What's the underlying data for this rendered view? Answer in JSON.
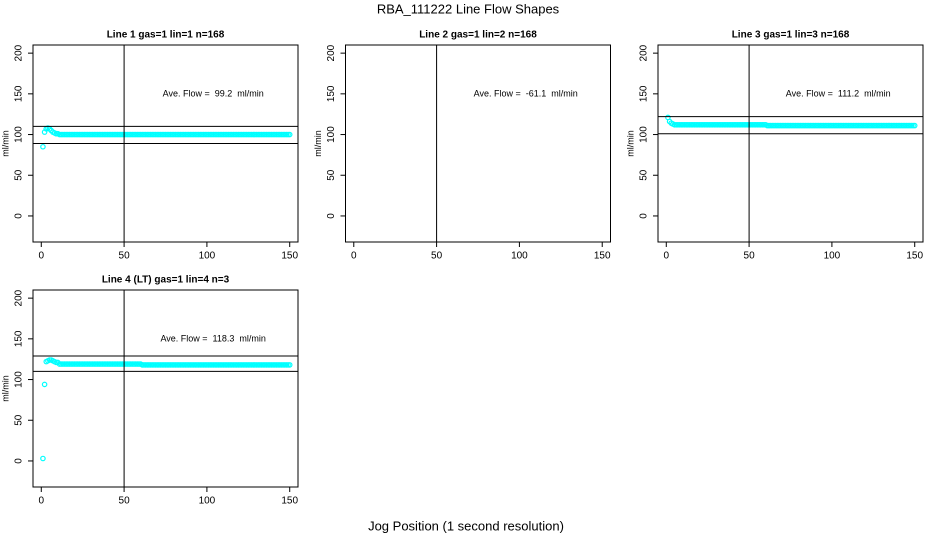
{
  "title": "RBA_111222  Line Flow Shapes",
  "xlabel": "Jog Position (1 second resolution)",
  "chart_data": [
    {
      "type": "scatter",
      "title": "Line 1 gas=1 lin=1 n=168",
      "ylabel": "ml/min",
      "color": "#00ffff",
      "annotation": "Ave. Flow =  99.2  ml/min",
      "xlim": [
        -5,
        155
      ],
      "ylim": [
        -32,
        210
      ],
      "xticks": [
        0,
        50,
        100,
        150
      ],
      "yticks": [
        0,
        50,
        100,
        150,
        200
      ],
      "hlines": [
        110,
        89
      ],
      "vlines": [
        50
      ],
      "x": [
        1,
        2,
        3,
        4,
        5,
        6,
        7,
        8,
        9,
        10,
        11,
        12,
        13,
        14,
        15,
        16,
        17,
        18,
        19,
        20,
        21,
        22,
        23,
        24,
        25,
        26,
        27,
        28,
        29,
        30,
        31,
        32,
        33,
        34,
        35,
        36,
        37,
        38,
        39,
        40,
        41,
        42,
        43,
        44,
        45,
        46,
        47,
        48,
        49,
        50,
        51,
        52,
        53,
        54,
        55,
        56,
        57,
        58,
        59,
        60,
        61,
        62,
        63,
        64,
        65,
        66,
        67,
        68,
        69,
        70,
        71,
        72,
        73,
        74,
        75,
        76,
        77,
        78,
        79,
        80,
        81,
        82,
        83,
        84,
        85,
        86,
        87,
        88,
        89,
        90,
        91,
        92,
        93,
        94,
        95,
        96,
        97,
        98,
        99,
        100,
        101,
        102,
        103,
        104,
        105,
        106,
        107,
        108,
        109,
        110,
        111,
        112,
        113,
        114,
        115,
        116,
        117,
        118,
        119,
        120,
        121,
        122,
        123,
        124,
        125,
        126,
        127,
        128,
        129,
        130,
        131,
        132,
        133,
        134,
        135,
        136,
        137,
        138,
        139,
        140,
        141,
        142,
        143,
        144,
        145,
        146,
        147,
        148,
        149,
        150
      ],
      "y": [
        85,
        103,
        107,
        108,
        107,
        105,
        103,
        102,
        101,
        101,
        100,
        100,
        100,
        100,
        100,
        100,
        100,
        100,
        100,
        100,
        100,
        100,
        100,
        100,
        100,
        100,
        100,
        100,
        100,
        100,
        100,
        100,
        100,
        100,
        100,
        100,
        100,
        100,
        100,
        100,
        100,
        100,
        100,
        100,
        100,
        100,
        100,
        100,
        100,
        100,
        100,
        100,
        100,
        100,
        100,
        100,
        100,
        100,
        100,
        100,
        100,
        100,
        100,
        100,
        100,
        100,
        100,
        100,
        100,
        100,
        100,
        100,
        100,
        100,
        100,
        100,
        100,
        100,
        100,
        100,
        100,
        100,
        100,
        100,
        100,
        100,
        100,
        100,
        100,
        100,
        100,
        100,
        100,
        100,
        100,
        100,
        100,
        100,
        100,
        100,
        100,
        100,
        100,
        100,
        100,
        100,
        100,
        100,
        100,
        100,
        100,
        100,
        100,
        100,
        100,
        100,
        100,
        100,
        100,
        100,
        100,
        100,
        100,
        100,
        100,
        100,
        100,
        100,
        100,
        100,
        100,
        100,
        100,
        100,
        100,
        100,
        100,
        100,
        100,
        100,
        100,
        100,
        100,
        100,
        100,
        100,
        100,
        100,
        100,
        100
      ]
    },
    {
      "type": "scatter",
      "title": "Line 2 gas=1 lin=2 n=168",
      "ylabel": "ml/min",
      "color": "#00ffff",
      "annotation": "Ave. Flow =  -61.1  ml/min",
      "xlim": [
        -5,
        155
      ],
      "ylim": [
        -32,
        210
      ],
      "xticks": [
        0,
        50,
        100,
        150
      ],
      "yticks": [
        0,
        50,
        100,
        150,
        200
      ],
      "hlines": [],
      "vlines": [
        50
      ],
      "x": [],
      "y": []
    },
    {
      "type": "scatter",
      "title": "Line 3 gas=1 lin=3 n=168",
      "ylabel": "ml/min",
      "color": "#00ffff",
      "annotation": "Ave. Flow =  111.2  ml/min",
      "xlim": [
        -5,
        155
      ],
      "ylim": [
        -32,
        210
      ],
      "xticks": [
        0,
        50,
        100,
        150
      ],
      "yticks": [
        0,
        50,
        100,
        150,
        200
      ],
      "hlines": [
        122,
        101
      ],
      "vlines": [
        50
      ],
      "x": [
        1,
        2,
        3,
        4,
        5,
        6,
        7,
        8,
        9,
        10,
        11,
        12,
        13,
        14,
        15,
        16,
        17,
        18,
        19,
        20,
        21,
        22,
        23,
        24,
        25,
        26,
        27,
        28,
        29,
        30,
        31,
        32,
        33,
        34,
        35,
        36,
        37,
        38,
        39,
        40,
        41,
        42,
        43,
        44,
        45,
        46,
        47,
        48,
        49,
        50,
        51,
        52,
        53,
        54,
        55,
        56,
        57,
        58,
        59,
        60,
        61,
        62,
        63,
        64,
        65,
        66,
        67,
        68,
        69,
        70,
        71,
        72,
        73,
        74,
        75,
        76,
        77,
        78,
        79,
        80,
        81,
        82,
        83,
        84,
        85,
        86,
        87,
        88,
        89,
        90,
        91,
        92,
        93,
        94,
        95,
        96,
        97,
        98,
        99,
        100,
        101,
        102,
        103,
        104,
        105,
        106,
        107,
        108,
        109,
        110,
        111,
        112,
        113,
        114,
        115,
        116,
        117,
        118,
        119,
        120,
        121,
        122,
        123,
        124,
        125,
        126,
        127,
        128,
        129,
        130,
        131,
        132,
        133,
        134,
        135,
        136,
        137,
        138,
        139,
        140,
        141,
        142,
        143,
        144,
        145,
        146,
        147,
        148,
        149,
        150
      ],
      "y": [
        121,
        116,
        114,
        113,
        112,
        112,
        112,
        112,
        112,
        112,
        112,
        112,
        112,
        112,
        112,
        112,
        112,
        112,
        112,
        112,
        112,
        112,
        112,
        112,
        112,
        112,
        112,
        112,
        112,
        112,
        112,
        112,
        112,
        112,
        112,
        112,
        112,
        112,
        112,
        112,
        112,
        112,
        112,
        112,
        112,
        112,
        112,
        112,
        112,
        112,
        112,
        112,
        112,
        112,
        112,
        112,
        112,
        112,
        112,
        112,
        111,
        111,
        111,
        111,
        111,
        111,
        111,
        111,
        111,
        111,
        111,
        111,
        111,
        111,
        111,
        111,
        111,
        111,
        111,
        111,
        111,
        111,
        111,
        111,
        111,
        111,
        111,
        111,
        111,
        111,
        111,
        111,
        111,
        111,
        111,
        111,
        111,
        111,
        111,
        111,
        111,
        111,
        111,
        111,
        111,
        111,
        111,
        111,
        111,
        111,
        111,
        111,
        111,
        111,
        111,
        111,
        111,
        111,
        111,
        111,
        111,
        111,
        111,
        111,
        111,
        111,
        111,
        111,
        111,
        111,
        111,
        111,
        111,
        111,
        111,
        111,
        111,
        111,
        111,
        111,
        111,
        111,
        111,
        111,
        111,
        111,
        111,
        111,
        111,
        111
      ]
    },
    {
      "type": "scatter",
      "title": "Line 4 (LT) gas=1 lin=4 n=3",
      "ylabel": "ml/min",
      "color": "#00ffff",
      "annotation": "Ave. Flow =  118.3  ml/min",
      "xlim": [
        -5,
        155
      ],
      "ylim": [
        -32,
        210
      ],
      "xticks": [
        0,
        50,
        100,
        150
      ],
      "yticks": [
        0,
        50,
        100,
        150,
        200
      ],
      "hlines": [
        129,
        110
      ],
      "vlines": [
        50
      ],
      "x": [
        1,
        2,
        3,
        4,
        5,
        6,
        7,
        8,
        9,
        10,
        11,
        12,
        13,
        14,
        15,
        16,
        17,
        18,
        19,
        20,
        21,
        22,
        23,
        24,
        25,
        26,
        27,
        28,
        29,
        30,
        31,
        32,
        33,
        34,
        35,
        36,
        37,
        38,
        39,
        40,
        41,
        42,
        43,
        44,
        45,
        46,
        47,
        48,
        49,
        50,
        51,
        52,
        53,
        54,
        55,
        56,
        57,
        58,
        59,
        60,
        61,
        62,
        63,
        64,
        65,
        66,
        67,
        68,
        69,
        70,
        71,
        72,
        73,
        74,
        75,
        76,
        77,
        78,
        79,
        80,
        81,
        82,
        83,
        84,
        85,
        86,
        87,
        88,
        89,
        90,
        91,
        92,
        93,
        94,
        95,
        96,
        97,
        98,
        99,
        100,
        101,
        102,
        103,
        104,
        105,
        106,
        107,
        108,
        109,
        110,
        111,
        112,
        113,
        114,
        115,
        116,
        117,
        118,
        119,
        120,
        121,
        122,
        123,
        124,
        125,
        126,
        127,
        128,
        129,
        130,
        131,
        132,
        133,
        134,
        135,
        136,
        137,
        138,
        139,
        140,
        141,
        142,
        143,
        144,
        145,
        146,
        147,
        148,
        149,
        150
      ],
      "y": [
        3,
        94,
        122,
        123,
        124,
        124,
        123,
        122,
        121,
        121,
        119,
        119,
        119,
        119,
        119,
        119,
        119,
        119,
        119,
        119,
        119,
        119,
        119,
        119,
        119,
        119,
        119,
        119,
        119,
        119,
        119,
        119,
        119,
        119,
        119,
        119,
        119,
        119,
        119,
        119,
        119,
        119,
        119,
        119,
        119,
        119,
        119,
        119,
        119,
        119,
        119,
        119,
        119,
        119,
        119,
        119,
        119,
        119,
        119,
        119,
        118,
        118,
        118,
        118,
        118,
        118,
        118,
        118,
        118,
        118,
        118,
        118,
        118,
        118,
        118,
        118,
        118,
        118,
        118,
        118,
        118,
        118,
        118,
        118,
        118,
        118,
        118,
        118,
        118,
        118,
        118,
        118,
        118,
        118,
        118,
        118,
        118,
        118,
        118,
        118,
        118,
        118,
        118,
        118,
        118,
        118,
        118,
        118,
        118,
        118,
        118,
        118,
        118,
        118,
        118,
        118,
        118,
        118,
        118,
        118,
        118,
        118,
        118,
        118,
        118,
        118,
        118,
        118,
        118,
        118,
        118,
        118,
        118,
        118,
        118,
        118,
        118,
        118,
        118,
        118,
        118,
        118,
        118,
        118,
        118,
        118,
        118,
        118,
        118,
        118
      ]
    }
  ]
}
